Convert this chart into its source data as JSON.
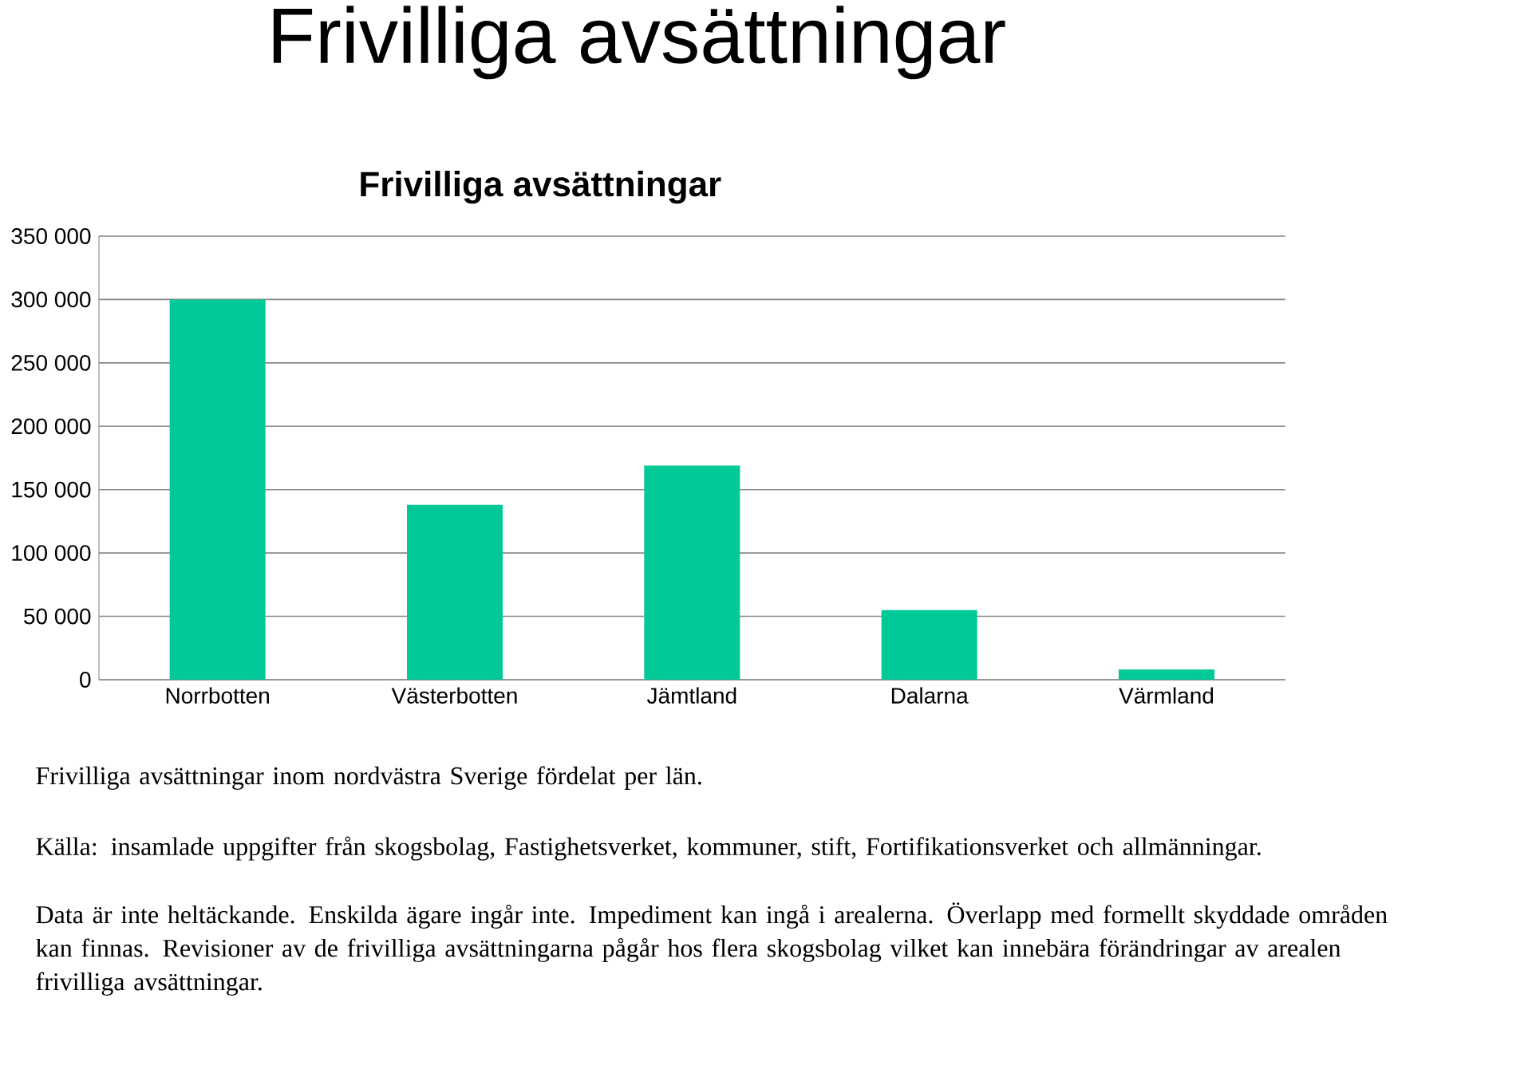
{
  "chart_data": {
    "type": "bar",
    "title": "Frivilliga avsättningar",
    "subtitle": "Frivilliga avsättningar",
    "categories": [
      "Norrbotten",
      "Västerbotten",
      "Jämtland",
      "Dalarna",
      "Värmland"
    ],
    "values": [
      300000,
      138000,
      169000,
      55000,
      8000
    ],
    "color": "#00c896",
    "ylim": [
      0,
      350000
    ],
    "yticks": [
      {
        "value": 0,
        "label": "0"
      },
      {
        "value": 50000,
        "label": "50 000"
      },
      {
        "value": 100000,
        "label": "100 000"
      },
      {
        "value": 150000,
        "label": "150 000"
      },
      {
        "value": 200000,
        "label": "200 000"
      },
      {
        "value": 250000,
        "label": "250 000"
      },
      {
        "value": 300000,
        "label": "300 000"
      },
      {
        "value": 350000,
        "label": "350 000"
      }
    ],
    "grid": "y",
    "annotations": [
      "Frivilliga avsättningar inom nordvästra Sverige fördelat per län.",
      "Källa: insamlade uppgifter från skogsbolag, Fastighetsverket, kommuner, stift, Fortifikationsverket och allmänningar.",
      "Data är inte heltäckande.  Enskilda ägare ingår inte. Impediment kan ingå i arealerna. Överlapp med formellt skyddade områden kan finnas. Revisioner av de frivilliga avsättningarna pågår hos flera skogsbolag vilket kan innebära förändringar av arealen frivilliga avsättningar."
    ]
  }
}
